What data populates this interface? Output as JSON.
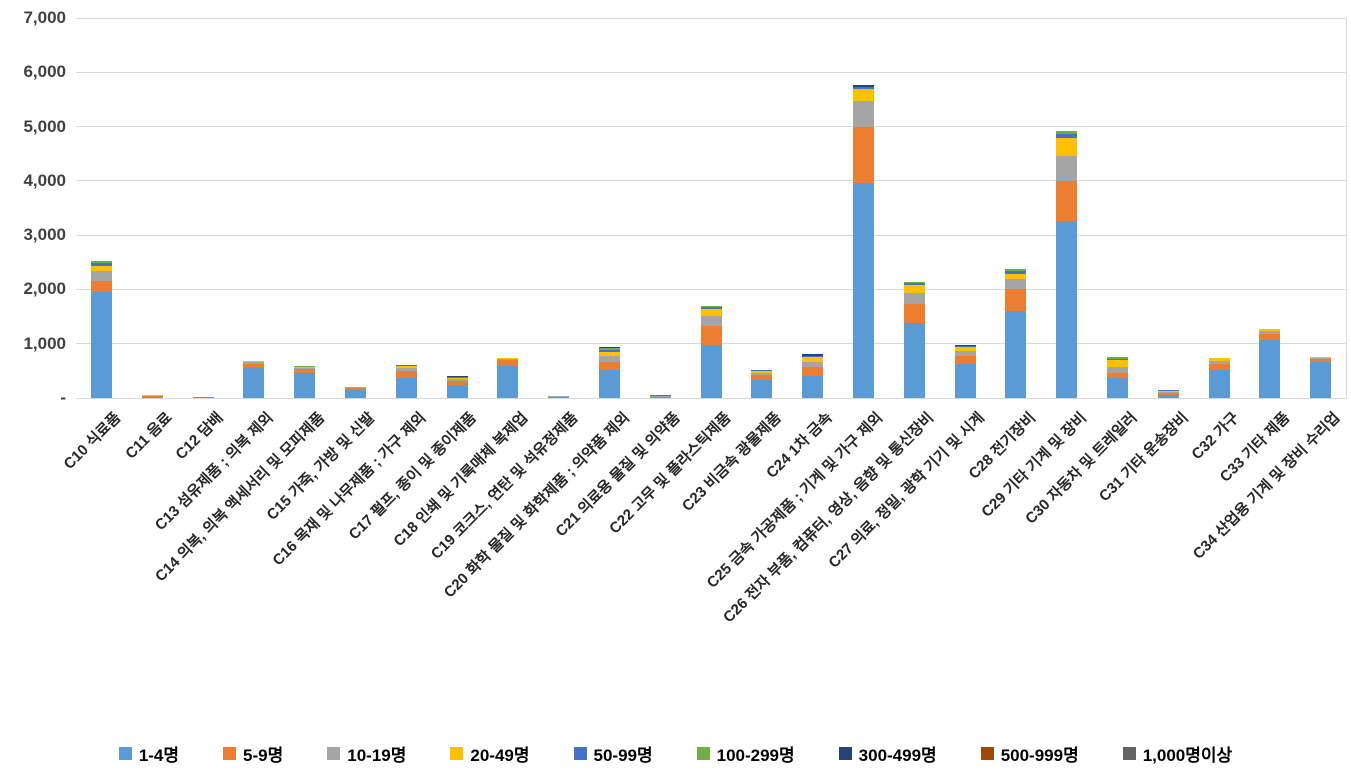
{
  "chart_data": {
    "type": "bar",
    "stacked": true,
    "title": "",
    "xlabel": "",
    "ylabel": "",
    "ylim": [
      0,
      7000
    ],
    "ytick_step": 1000,
    "ytick_labels": [
      "7,000",
      "6,000",
      "5,000",
      "4,000",
      "3,000",
      "2,000",
      "1,000",
      "-"
    ],
    "grid": true,
    "legend_position": "bottom",
    "categories": [
      "C10 식료품",
      "C11 음료",
      "C12 담배",
      "C13 섬유제품 ; 의복 제외",
      "C14 의복, 의복 액세서리 및 모피제품",
      "C15 가죽, 가방 및 신발",
      "C16 목재 및 나무제품 ; 가구 제외",
      "C17 펄프, 종이 및 종이제품",
      "C18 인쇄 및 기록매체 복제업",
      "C19 코크스, 연탄 및 석유정제품",
      "C20 화학 물질 및 화학제품 ; 의약품 제외",
      "C21 의료용 물질 및 의약품",
      "C22 고무 및 플라스틱제품",
      "C23 비금속 광물제품",
      "C24 1차 금속",
      "C25 금속 가공제품 ; 기계 및 가구 제외",
      "C26 전자 부품, 컴퓨터, 영상, 음향 및 통신장비",
      "C27 의료, 정밀, 광학 기기 및 시계",
      "C28 전기장비",
      "C29 기타 기계 및 장비",
      "C30 자동차 및 트레일러",
      "C31 기타 운송장비",
      "C32 가구",
      "C33 기타 제품",
      "C34 산업용 기계 및 장비 수리업"
    ],
    "series": [
      {
        "name": "1-4명",
        "color": "#5B9BD5",
        "values": [
          1950,
          25,
          20,
          545,
          455,
          150,
          375,
          245,
          595,
          10,
          520,
          15,
          975,
          330,
          400,
          3970,
          1390,
          635,
          1600,
          3270,
          370,
          60,
          510,
          1060,
          655
        ]
      },
      {
        "name": "5-9명",
        "color": "#ED7D31",
        "values": [
          200,
          10,
          3,
          80,
          75,
          40,
          115,
          60,
          100,
          15,
          135,
          10,
          350,
          90,
          165,
          1020,
          335,
          140,
          400,
          720,
          100,
          30,
          120,
          115,
          70
        ]
      },
      {
        "name": "10-19명",
        "color": "#A5A5A5",
        "values": [
          185,
          10,
          2,
          40,
          25,
          15,
          60,
          40,
          25,
          5,
          110,
          8,
          185,
          45,
          100,
          490,
          215,
          90,
          185,
          470,
          100,
          25,
          60,
          55,
          20
        ]
      },
      {
        "name": "20-49명",
        "color": "#FFC000",
        "values": [
          105,
          15,
          0,
          12,
          20,
          5,
          35,
          25,
          10,
          0,
          90,
          5,
          135,
          30,
          90,
          210,
          135,
          80,
          105,
          330,
          130,
          20,
          40,
          35,
          10
        ]
      },
      {
        "name": "50-99명",
        "color": "#4472C4",
        "values": [
          40,
          0,
          0,
          10,
          5,
          0,
          15,
          12,
          0,
          0,
          30,
          12,
          25,
          15,
          20,
          40,
          40,
          20,
          45,
          80,
          15,
          10,
          0,
          0,
          0
        ]
      },
      {
        "name": "100-299명",
        "color": "#70AD47",
        "values": [
          45,
          0,
          0,
          5,
          10,
          0,
          15,
          8,
          10,
          0,
          30,
          8,
          20,
          10,
          0,
          0,
          30,
          0,
          40,
          55,
          35,
          10,
          15,
          15,
          0
        ]
      },
      {
        "name": "300-499명",
        "color": "#264478",
        "values": [
          0,
          0,
          0,
          0,
          0,
          0,
          0,
          8,
          0,
          0,
          25,
          0,
          10,
          0,
          30,
          30,
          0,
          20,
          0,
          0,
          0,
          0,
          0,
          0,
          0
        ]
      },
      {
        "name": "500-999명",
        "color": "#9E480E",
        "values": [
          0,
          0,
          0,
          0,
          0,
          0,
          0,
          0,
          0,
          8,
          0,
          0,
          0,
          0,
          0,
          0,
          0,
          0,
          0,
          0,
          0,
          0,
          0,
          0,
          0
        ]
      },
      {
        "name": "1,000명이상",
        "color": "#636363",
        "values": [
          0,
          0,
          0,
          0,
          0,
          0,
          0,
          0,
          0,
          0,
          0,
          0,
          0,
          0,
          0,
          0,
          0,
          0,
          0,
          0,
          0,
          0,
          0,
          0,
          0
        ]
      }
    ]
  }
}
